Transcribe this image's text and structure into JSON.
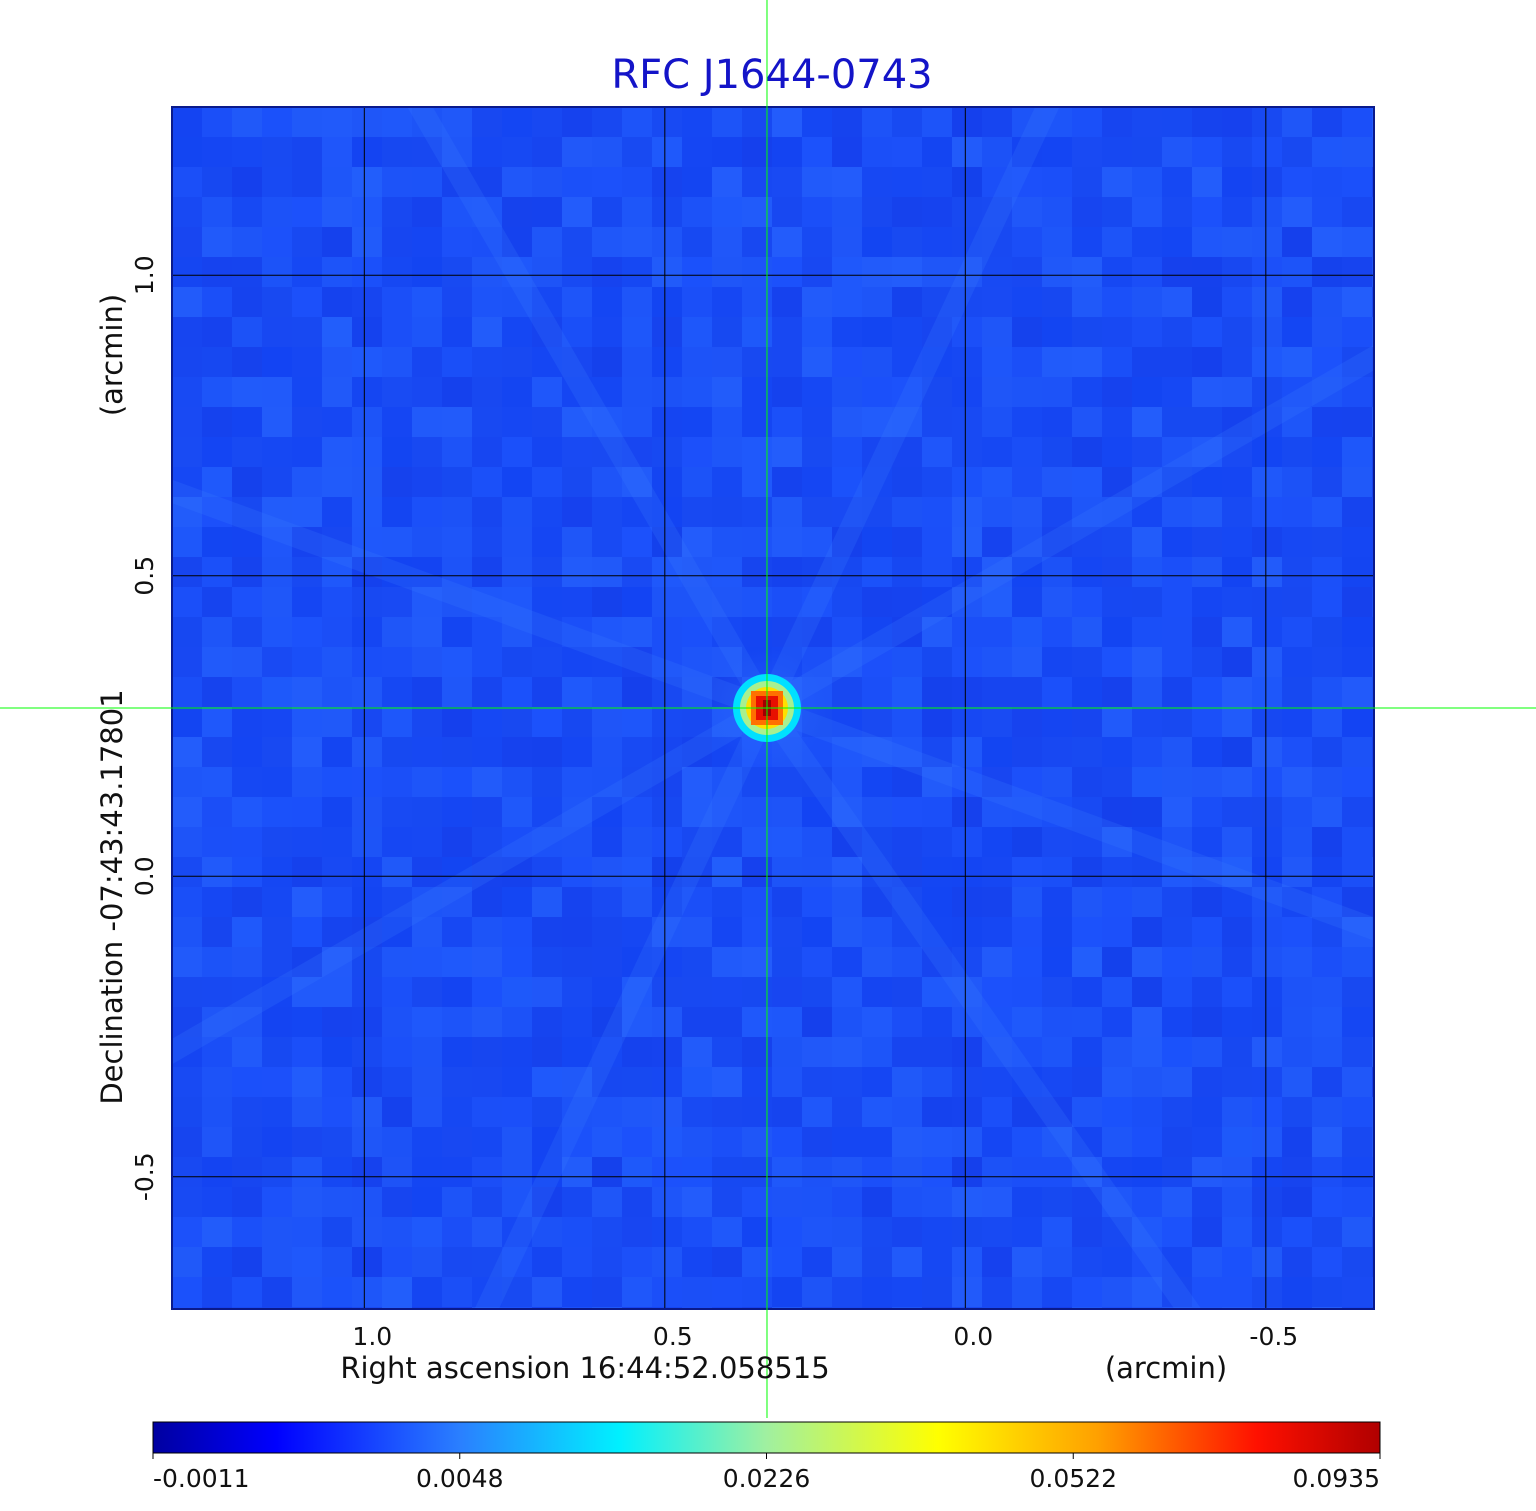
{
  "chart_data": {
    "type": "heatmap",
    "title": "RFC J1644-0743",
    "xlabel": "Right ascension  16:44:52.058515",
    "xunit": "(arcmin)",
    "ylabel": "Declination  -07:43:43.17801",
    "yunit": "(arcmin)",
    "x_ticks": [
      1.0,
      0.5,
      0.0,
      -0.5
    ],
    "y_ticks": [
      1.0,
      0.5,
      0.0,
      -0.5
    ],
    "x_tick_labels": [
      "1.0",
      "0.5",
      "0.0",
      "-0.5"
    ],
    "y_tick_labels": [
      "1.0",
      "0.5",
      "0.0",
      "-0.5"
    ],
    "xlim": [
      1.32,
      -0.68
    ],
    "ylim": [
      -0.72,
      1.28
    ],
    "x_reversed": true,
    "grid": true,
    "crosshair": {
      "x": 0.33,
      "y": 0.28
    },
    "peak": {
      "x": 0.33,
      "y": 0.28,
      "value": 0.0935
    },
    "colorbar": {
      "ticks": [
        -0.0011,
        0.0048,
        0.0226,
        0.0522,
        0.0935
      ],
      "tick_labels": [
        "-0.0011",
        "0.0048",
        "0.0226",
        "0.0522",
        "0.0935"
      ],
      "colormap": "jet"
    },
    "colors": {
      "title": "#1414c8",
      "background_field": "#1a4cf5",
      "grid": "#000000",
      "crosshair": "#00ff00",
      "frame": "#0a1a8c"
    }
  }
}
